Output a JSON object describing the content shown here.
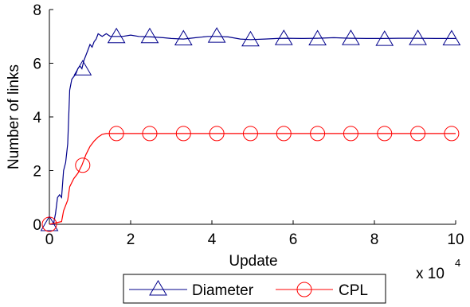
{
  "chart_data": {
    "type": "line",
    "xlabel": "Update",
    "ylabel": "Number of links",
    "x_multiplier_label": {
      "base": "x 10",
      "exponent": "4"
    },
    "xlim": [
      0,
      10
    ],
    "ylim": [
      0,
      8
    ],
    "xticks": [
      "0",
      "2",
      "4",
      "6",
      "8",
      "10"
    ],
    "yticks": [
      "0",
      "2",
      "4",
      "6",
      "8"
    ],
    "grid": false,
    "legend_position": "bottom-center, outside plot",
    "series": [
      {
        "name": "Diameter",
        "color": "#00008b",
        "marker": "triangle",
        "x": [
          0,
          0.1,
          0.15,
          0.2,
          0.25,
          0.3,
          0.35,
          0.4,
          0.45,
          0.5,
          0.55,
          0.6,
          0.65,
          0.7,
          0.75,
          0.8,
          0.85,
          0.9,
          0.95,
          1.0,
          1.05,
          1.1,
          1.15,
          1.2,
          1.3,
          1.4,
          1.5,
          1.6,
          1.8,
          2.0,
          2.2,
          2.5,
          2.8,
          3.0,
          3.3,
          3.6,
          3.9,
          4.1,
          4.4,
          4.7,
          4.95,
          5.3,
          5.6,
          5.8,
          6.2,
          6.6,
          7.0,
          7.4,
          7.8,
          8.2,
          8.6,
          9.0,
          9.5,
          10.0
        ],
        "values": [
          0,
          0,
          0.4,
          1.0,
          1.1,
          1.0,
          2.0,
          2.3,
          3.0,
          5.0,
          5.4,
          5.5,
          5.6,
          5.8,
          5.9,
          5.8,
          6.1,
          6.3,
          6.5,
          6.7,
          6.6,
          6.8,
          6.9,
          7.1,
          7.0,
          7.1,
          7.0,
          7.0,
          7.0,
          7.05,
          7.0,
          6.98,
          6.95,
          6.92,
          6.9,
          6.95,
          7.0,
          7.0,
          6.98,
          6.9,
          6.88,
          6.9,
          6.92,
          6.93,
          6.92,
          6.93,
          6.95,
          6.93,
          6.92,
          6.92,
          6.93,
          6.93,
          6.92,
          6.92
        ],
        "marker_x": [
          0,
          0.82,
          1.65,
          2.47,
          3.3,
          4.12,
          4.95,
          5.77,
          6.6,
          7.42,
          8.25,
          9.07,
          9.9
        ],
        "marker_values": [
          0,
          5.8,
          7.0,
          7.0,
          6.92,
          7.02,
          6.88,
          6.93,
          6.92,
          6.93,
          6.9,
          6.93,
          6.92
        ]
      },
      {
        "name": "CPL",
        "color": "#ff0000",
        "marker": "circle",
        "x": [
          0,
          0.3,
          0.35,
          0.45,
          0.5,
          0.6,
          0.7,
          0.8,
          0.9,
          1.0,
          1.1,
          1.2,
          1.3,
          1.4,
          1.5,
          1.65,
          10.0
        ],
        "values": [
          0,
          0.1,
          0.5,
          0.9,
          1.4,
          1.7,
          1.9,
          2.2,
          2.6,
          2.9,
          3.1,
          3.25,
          3.35,
          3.38,
          3.38,
          3.38,
          3.38
        ],
        "marker_x": [
          0,
          0.82,
          1.65,
          2.47,
          3.3,
          4.12,
          4.95,
          5.77,
          6.6,
          7.42,
          8.25,
          9.07,
          9.9
        ],
        "marker_values": [
          0,
          2.2,
          3.38,
          3.38,
          3.38,
          3.38,
          3.38,
          3.38,
          3.38,
          3.38,
          3.38,
          3.38,
          3.38
        ]
      }
    ]
  }
}
